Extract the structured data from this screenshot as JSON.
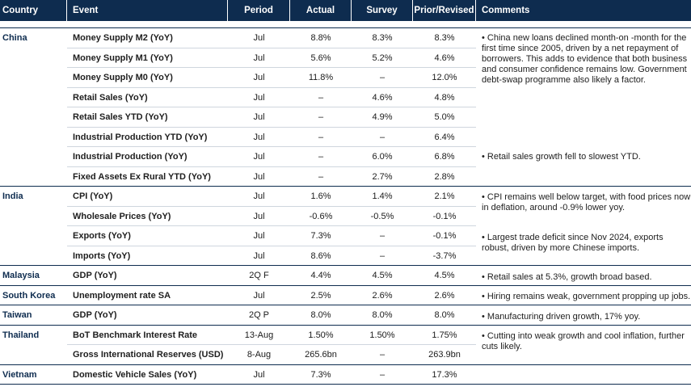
{
  "headers": {
    "country": "Country",
    "event": "Event",
    "period": "Period",
    "actual": "Actual",
    "survey": "Survey",
    "prior": "Prior/Revised",
    "comments": "Comments"
  },
  "rows": [
    {
      "country": "China",
      "event": "Money Supply M2 (YoY)",
      "period": "Jul",
      "actual": "8.8%",
      "survey": "8.3%",
      "prior": "8.3%"
    },
    {
      "country": "",
      "event": "Money Supply M1 (YoY)",
      "period": "Jul",
      "actual": "5.6%",
      "survey": "5.2%",
      "prior": "4.6%"
    },
    {
      "country": "",
      "event": "Money Supply M0 (YoY)",
      "period": "Jul",
      "actual": "11.8%",
      "survey": "–",
      "prior": "12.0%"
    },
    {
      "country": "",
      "event": "Retail Sales (YoY)",
      "period": "Jul",
      "actual": "–",
      "survey": "4.6%",
      "prior": "4.8%"
    },
    {
      "country": "",
      "event": "Retail Sales YTD (YoY)",
      "period": "Jul",
      "actual": "–",
      "survey": "4.9%",
      "prior": "5.0%"
    },
    {
      "country": "",
      "event": "Industrial Production YTD (YoY)",
      "period": "Jul",
      "actual": "–",
      "survey": "–",
      "prior": "6.4%"
    },
    {
      "country": "",
      "event": "Industrial Production (YoY)",
      "period": "Jul",
      "actual": "–",
      "survey": "6.0%",
      "prior": "6.8%"
    },
    {
      "country": "",
      "event": "Fixed Assets Ex Rural YTD (YoY)",
      "period": "Jul",
      "actual": "–",
      "survey": "2.7%",
      "prior": "2.8%"
    },
    {
      "country": "India",
      "event": "CPI (YoY)",
      "period": "Jul",
      "actual": "1.6%",
      "survey": "1.4%",
      "prior": "2.1%"
    },
    {
      "country": "",
      "event": "Wholesale Prices (YoY)",
      "period": "Jul",
      "actual": "-0.6%",
      "survey": "-0.5%",
      "prior": "-0.1%"
    },
    {
      "country": "",
      "event": "Exports (YoY)",
      "period": "Jul",
      "actual": "7.3%",
      "survey": "–",
      "prior": "-0.1%"
    },
    {
      "country": "",
      "event": "Imports (YoY)",
      "period": "Jul",
      "actual": "8.6%",
      "survey": "–",
      "prior": "-3.7%"
    },
    {
      "country": "Malaysia",
      "event": "GDP (YoY)",
      "period": "2Q F",
      "actual": "4.4%",
      "survey": "4.5%",
      "prior": "4.5%"
    },
    {
      "country": "South Korea",
      "event": "Unemployment rate SA",
      "period": "Jul",
      "actual": "2.5%",
      "survey": "2.6%",
      "prior": "2.6%"
    },
    {
      "country": "Taiwan",
      "event": "GDP (YoY)",
      "period": "2Q P",
      "actual": "8.0%",
      "survey": "8.0%",
      "prior": "8.0%"
    },
    {
      "country": "Thailand",
      "event": "BoT Benchmark Interest Rate",
      "period": "13-Aug",
      "actual": "1.50%",
      "survey": "1.50%",
      "prior": "1.75%"
    },
    {
      "country": "",
      "event": "Gross International Reserves (USD)",
      "period": "8-Aug",
      "actual": "265.6bn",
      "survey": "–",
      "prior": "263.9bn"
    },
    {
      "country": "Vietnam",
      "event": "Domestic Vehicle Sales (YoY)",
      "period": "Jul",
      "actual": "7.3%",
      "survey": "–",
      "prior": "17.3%"
    }
  ],
  "comments": {
    "china_1": "• China new loans declined month-on -month for the first time since 2005, driven by a net repayment of borrowers. This adds to evidence that both business and consumer confidence remains low. Government debt-swap programme also likely a factor.",
    "china_2": "• Retail sales growth fell to slowest YTD.",
    "india_1": "• CPI remains well below target, with food prices now in deflation, around -0.9% lower yoy.",
    "india_2": "• Largest trade deficit since Nov 2024, exports robust, driven by more Chinese imports.",
    "malaysia": "• Retail sales at 5.3%, growth broad based.",
    "korea": "• Hiring remains weak, government propping up jobs.",
    "taiwan": "• Manufacturing driven growth, 17% yoy.",
    "thailand": "• Cutting into weak growth and cool inflation, further cuts likely."
  }
}
